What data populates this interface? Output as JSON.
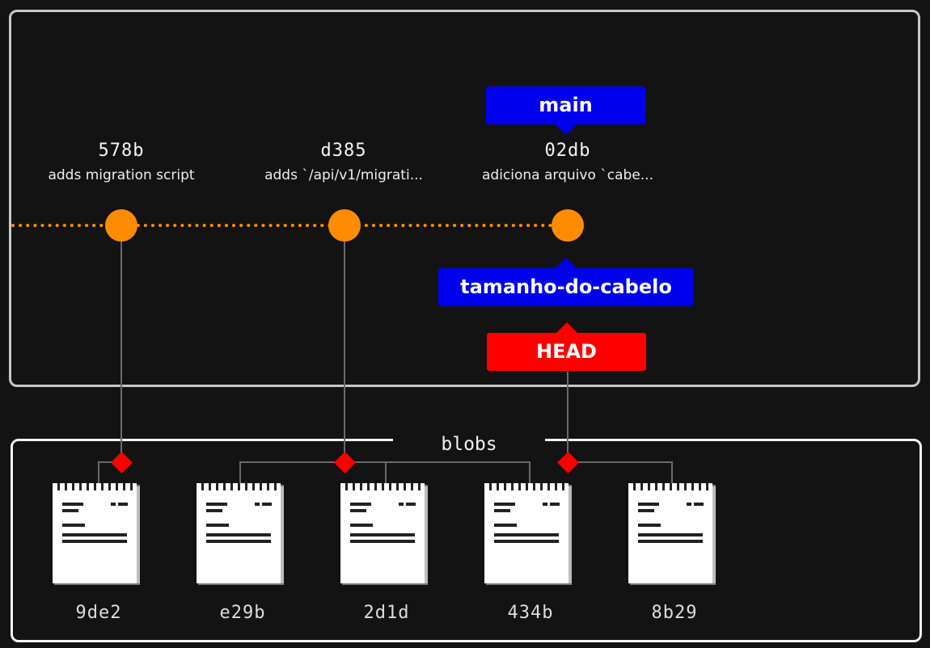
{
  "diagram": {
    "commits": [
      {
        "sha": "578b",
        "message": "adds migration script"
      },
      {
        "sha": "d385",
        "message": "adds `/api/v1/migrati..."
      },
      {
        "sha": "02db",
        "message": "adiciona arquivo `cabe..."
      }
    ],
    "refs": {
      "main": "main",
      "branch": "tamanho-do-cabelo",
      "head": "HEAD"
    },
    "blobs_title": "blobs",
    "blobs": [
      "9de2",
      "e29b",
      "2d1d",
      "434b",
      "8b29"
    ],
    "colors": {
      "background": "#131313",
      "frame": "#c8c8c8",
      "commit_node": "#ff8c00",
      "branch_tag": "#0000ee",
      "head_tag": "#ff0000",
      "tree_connector": "#ff0000"
    }
  }
}
